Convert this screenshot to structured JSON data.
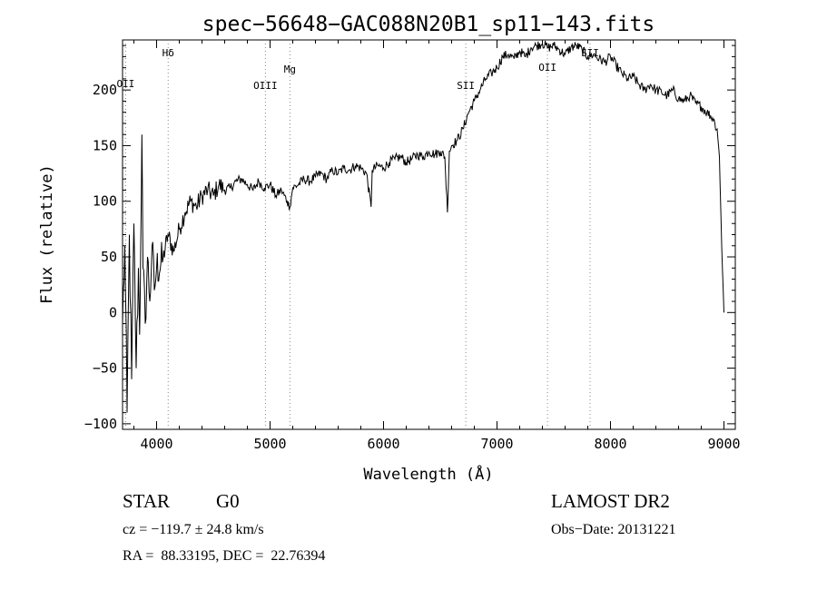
{
  "chart_data": {
    "type": "line",
    "title": "spec−56648−GAC088N20B1_sp11−143.fits",
    "xlabel": "Wavelength (Å)",
    "ylabel": "Flux (relative)",
    "xlim": [
      3700,
      9100
    ],
    "ylim": [
      -105,
      245
    ],
    "xticks": [
      4000,
      5000,
      6000,
      7000,
      8000,
      9000
    ],
    "xtick_labels": [
      "4000",
      "5000",
      "6000",
      "7000",
      "8000",
      "9000"
    ],
    "yticks": [
      -100,
      -50,
      0,
      50,
      100,
      150,
      200
    ],
    "ytick_labels": [
      "−100",
      "−50",
      "0",
      "50",
      "100",
      "150",
      "200"
    ],
    "grid": false,
    "legend": "none",
    "series": [
      {
        "x": [
          3700,
          3720,
          3740,
          3760,
          3780,
          3800,
          3820,
          3840,
          3850,
          3860,
          3870,
          3880,
          3900,
          3920,
          3940,
          3960,
          3980,
          4000,
          4050,
          4100,
          4150,
          4200,
          4250,
          4300,
          4350,
          4400,
          4450,
          4500,
          4550,
          4600,
          4650,
          4700,
          4750,
          4800,
          4850,
          4900,
          4950,
          5000,
          5050,
          5100,
          5150,
          5175,
          5200,
          5250,
          5300,
          5350,
          5400,
          5450,
          5500,
          5550,
          5600,
          5650,
          5700,
          5750,
          5800,
          5850,
          5890,
          5900,
          5950,
          6000,
          6050,
          6100,
          6150,
          6200,
          6250,
          6300,
          6350,
          6400,
          6450,
          6500,
          6540,
          6563,
          6580,
          6600,
          6650,
          6700,
          6750,
          6800,
          6850,
          6900,
          6950,
          7000,
          7050,
          7100,
          7150,
          7200,
          7250,
          7300,
          7350,
          7400,
          7450,
          7500,
          7550,
          7600,
          7650,
          7700,
          7750,
          7800,
          7850,
          7900,
          7950,
          8000,
          8050,
          8100,
          8150,
          8200,
          8250,
          8300,
          8350,
          8400,
          8450,
          8500,
          8550,
          8600,
          8650,
          8700,
          8750,
          8800,
          8850,
          8900,
          8920,
          8940,
          8960,
          8980,
          9000
        ],
        "y": [
          -10,
          60,
          -90,
          70,
          -60,
          80,
          -50,
          40,
          -20,
          60,
          160,
          40,
          -10,
          50,
          10,
          60,
          20,
          40,
          45,
          70,
          55,
          75,
          90,
          100,
          95,
          105,
          110,
          105,
          115,
          110,
          112,
          118,
          120,
          115,
          110,
          118,
          112,
          115,
          105,
          110,
          100,
          95,
          112,
          115,
          120,
          118,
          122,
          125,
          120,
          128,
          125,
          130,
          128,
          132,
          130,
          125,
          95,
          128,
          132,
          130,
          135,
          138,
          140,
          135,
          138,
          142,
          140,
          145,
          142,
          145,
          140,
          90,
          145,
          150,
          155,
          165,
          180,
          190,
          200,
          210,
          215,
          220,
          230,
          232,
          228,
          235,
          230,
          238,
          240,
          242,
          238,
          240,
          236,
          232,
          238,
          240,
          236,
          230,
          232,
          228,
          225,
          230,
          222,
          215,
          210,
          212,
          205,
          200,
          205,
          200,
          198,
          195,
          200,
          192,
          190,
          195,
          188,
          185,
          180,
          175,
          170,
          165,
          140,
          60,
          0
        ]
      }
    ],
    "annotations": [
      {
        "label": "OII",
        "x": 3727
      },
      {
        "label": "Hδ",
        "x": 4102
      },
      {
        "label": "OIII",
        "x": 4959
      },
      {
        "label": "Mg",
        "x": 5175
      },
      {
        "label": "SII",
        "x": 6725
      },
      {
        "label": "OII",
        "x": 7445
      },
      {
        "label": "SII",
        "x": 7820
      }
    ]
  },
  "footer": {
    "object_type": "STAR",
    "subclass": "G0",
    "survey": "LAMOST DR2",
    "cz": "cz = −119.7 ± 24.8 km/s",
    "obs_date": "Obs−Date: 20131221",
    "coords": "RA =  88.33195, DEC =  22.76394"
  }
}
